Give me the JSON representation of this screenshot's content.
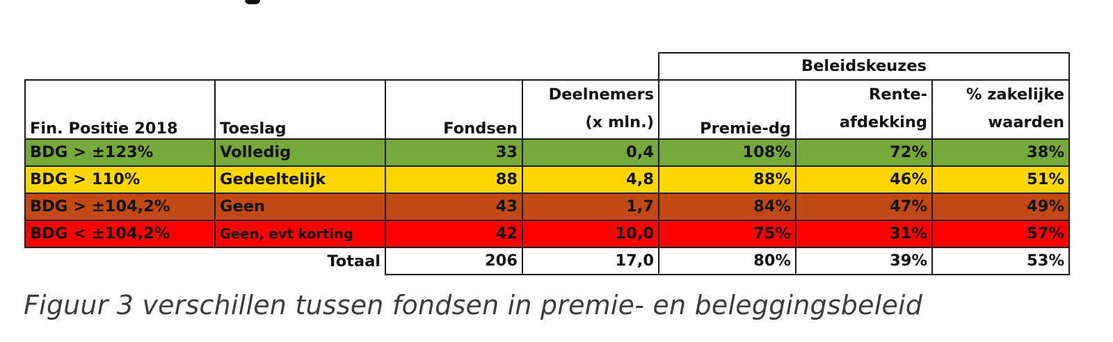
{
  "group_header": "Beleidskeuzes",
  "headers": {
    "positie": "Fin. Positie 2018",
    "toeslag": "Toeslag",
    "fondsen": "Fondsen",
    "deelnemers_line1": "Deelnemers",
    "deelnemers_line2": "(x mln.)",
    "premie": "Premie-dg",
    "rente_line1": "Rente-",
    "rente_line2": "afdekking",
    "zakelijk_line1": "% zakelijke",
    "zakelijk_line2": "waarden"
  },
  "rows": [
    {
      "positie": "BDG > ±123%",
      "toeslag": "Volledig",
      "fondsen": "33",
      "deelnemers": "0,4",
      "premie": "108%",
      "rente": "72%",
      "zakelijk": "38%",
      "color": "#77a83c"
    },
    {
      "positie": "BDG > 110%",
      "toeslag": "Gedeeltelijk",
      "fondsen": "88",
      "deelnemers": "4,8",
      "premie": "88%",
      "rente": "46%",
      "zakelijk": "51%",
      "color": "#ffd700"
    },
    {
      "positie": "BDG > ±104,2%",
      "toeslag": "Geen",
      "fondsen": "43",
      "deelnemers": "1,7",
      "premie": "84%",
      "rente": "47%",
      "zakelijk": "49%",
      "color": "#c24a12"
    },
    {
      "positie": "BDG < ±104,2%",
      "toeslag": "Geen, evt korting",
      "fondsen": "42",
      "deelnemers": "10,0",
      "premie": "75%",
      "rente": "31%",
      "zakelijk": "57%",
      "color": "#ff0000"
    }
  ],
  "total": {
    "label": "Totaal",
    "fondsen": "206",
    "deelnemers": "17,0",
    "premie": "80%",
    "rente": "39%",
    "zakelijk": "53%"
  },
  "caption": "Figuur 3 verschillen tussen fondsen in premie- en beleggingsbeleid"
}
